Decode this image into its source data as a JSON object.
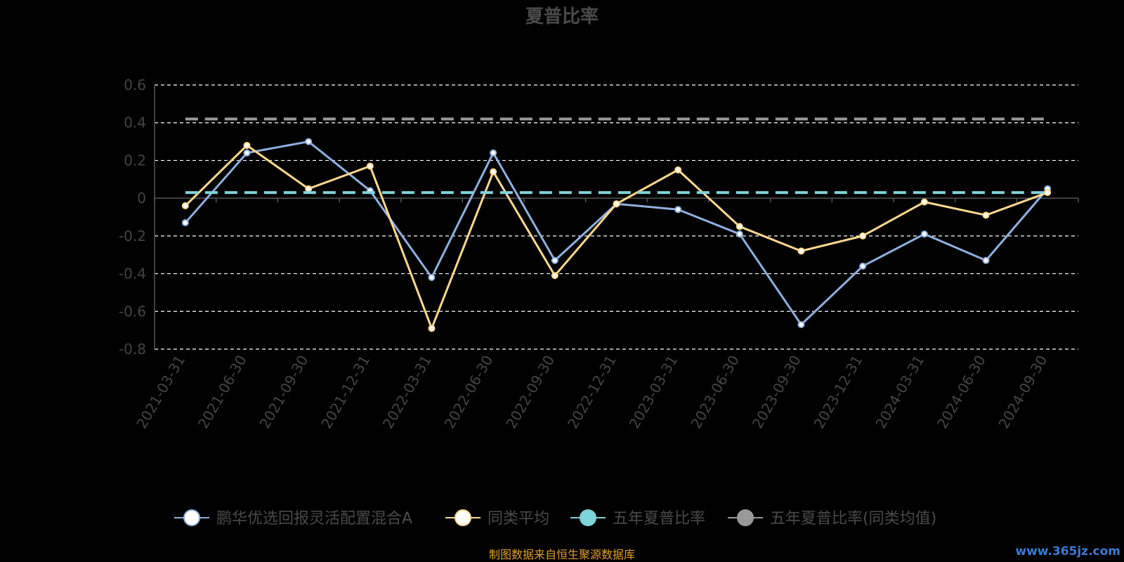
{
  "chart_data": {
    "type": "line",
    "title": "夏普比率",
    "categories": [
      "2021-03-31",
      "2021-06-30",
      "2021-09-30",
      "2021-12-31",
      "2022-03-31",
      "2022-06-30",
      "2022-09-30",
      "2022-12-31",
      "2023-03-31",
      "2023-06-30",
      "2023-09-30",
      "2023-12-31",
      "2024-03-31",
      "2024-06-30",
      "2024-09-30"
    ],
    "y_ticks": [
      "0.6",
      "0.4",
      "0.2",
      "0",
      "-0.2",
      "-0.4",
      "-0.6",
      "-0.8"
    ],
    "ylim": [
      -0.8,
      0.6
    ],
    "grid": true,
    "legend_position": "bottom",
    "series": [
      {
        "name": "鹏华优选回报灵活配置混合A",
        "color": "#8fb0e0",
        "style": "line",
        "values": [
          -0.13,
          0.24,
          0.3,
          0.04,
          -0.42,
          0.24,
          -0.33,
          -0.03,
          -0.06,
          -0.19,
          -0.67,
          -0.36,
          -0.19,
          -0.33,
          0.05
        ]
      },
      {
        "name": "同类平均",
        "color": "#ffd98e",
        "style": "line",
        "values": [
          -0.04,
          0.28,
          0.05,
          0.17,
          -0.69,
          0.14,
          -0.41,
          -0.03,
          0.15,
          -0.15,
          -0.28,
          -0.2,
          -0.02,
          -0.09,
          0.03
        ]
      },
      {
        "name": "五年夏普比率",
        "color": "#7ed3d8",
        "style": "dashed",
        "value": 0.03
      },
      {
        "name": "五年夏普比率(同类均值)",
        "color": "#999999",
        "style": "dashed",
        "value": 0.42
      }
    ],
    "source_text": "制图数据来自恒生聚源数据库",
    "watermark": "www.365jz.com"
  }
}
